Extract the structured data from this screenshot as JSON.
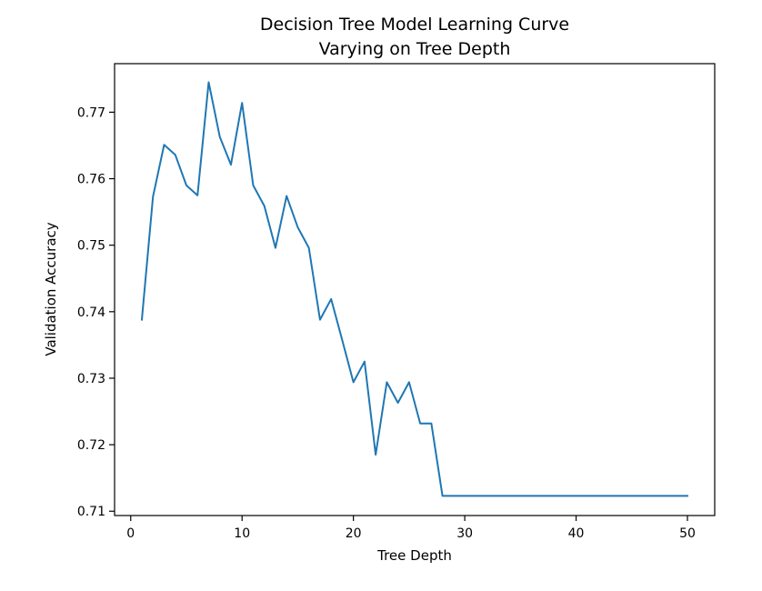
{
  "chart_data": {
    "type": "line",
    "title_line1": "Decision Tree Model Learning Curve",
    "title_line2": "Varying on Tree Depth",
    "xlabel": "Tree Depth",
    "ylabel": "Validation Accuracy",
    "xlim": [
      -1.45,
      52.45
    ],
    "ylim": [
      0.70935,
      0.7773
    ],
    "x_ticks": [
      0,
      10,
      20,
      30,
      40,
      50
    ],
    "y_ticks": [
      0.71,
      0.72,
      0.73,
      0.74,
      0.75,
      0.76,
      0.77
    ],
    "grid": false,
    "legend": "none",
    "line_color": "#1f77b4",
    "series": [
      {
        "x": [
          1,
          2,
          3,
          4,
          5,
          6,
          7,
          8,
          9,
          10,
          11,
          12,
          13,
          14,
          15,
          16,
          17,
          18,
          19,
          20,
          21,
          22,
          23,
          24,
          25,
          26,
          27,
          28,
          29,
          30,
          31,
          32,
          33,
          34,
          35,
          36,
          37,
          38,
          39,
          40,
          41,
          42,
          43,
          44,
          45,
          46,
          47,
          48,
          49,
          50
        ],
        "y": [
          0.7388,
          0.7573,
          0.7651,
          0.7636,
          0.759,
          0.7575,
          0.7745,
          0.7663,
          0.7621,
          0.7714,
          0.759,
          0.7559,
          0.7496,
          0.7574,
          0.7527,
          0.7496,
          0.7388,
          0.7419,
          0.7357,
          0.7294,
          0.7325,
          0.7185,
          0.7294,
          0.7263,
          0.7294,
          0.7232,
          0.7232,
          0.7123,
          0.7123,
          0.7123,
          0.7123,
          0.7123,
          0.7123,
          0.7123,
          0.7123,
          0.7123,
          0.7123,
          0.7123,
          0.7123,
          0.7123,
          0.7123,
          0.7123,
          0.7123,
          0.7123,
          0.7123,
          0.7123,
          0.7123,
          0.7123,
          0.7123,
          0.7123
        ]
      }
    ]
  }
}
